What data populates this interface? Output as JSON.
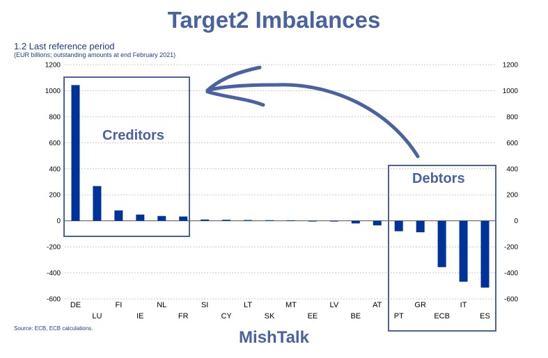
{
  "title": "Target2 Imbalances",
  "subtitle": "1.2 Last reference period",
  "unit_note": "(EUR billions; outstanding amounts at end February 2021)",
  "source": "Source: ECB, ECB calculations.",
  "watermark": "MishTalk",
  "annotations": {
    "creditors_label": "Creditors",
    "debtors_label": "Debtors"
  },
  "colors": {
    "bar": "#003399",
    "annotation": "#4a63a0",
    "grid": "#c8c8c8",
    "text": "#1f3b8c"
  },
  "chart_data": {
    "type": "bar",
    "categories": [
      "DE",
      "LU",
      "FI",
      "IE",
      "NL",
      "FR",
      "SI",
      "CY",
      "LT",
      "SK",
      "MT",
      "EE",
      "LV",
      "BE",
      "AT",
      "PT",
      "GR",
      "ECB",
      "IT",
      "ES"
    ],
    "values": [
      1043,
      267,
      80,
      48,
      37,
      33,
      10,
      8,
      6,
      5,
      4,
      -2,
      -4,
      -20,
      -35,
      -80,
      -88,
      -356,
      -468,
      -513
    ],
    "ylim": [
      -600,
      1200
    ],
    "yticks": [
      -600,
      -400,
      -200,
      0,
      200,
      400,
      600,
      800,
      1000,
      1200
    ],
    "ylabel": "",
    "xlabel": "",
    "grid": true
  }
}
